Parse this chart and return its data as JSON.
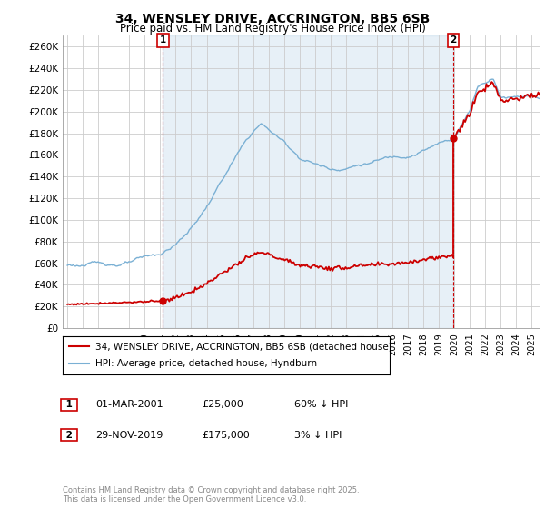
{
  "title1": "34, WENSLEY DRIVE, ACCRINGTON, BB5 6SB",
  "title2": "Price paid vs. HM Land Registry's House Price Index (HPI)",
  "legend1": "34, WENSLEY DRIVE, ACCRINGTON, BB5 6SB (detached house)",
  "legend2": "HPI: Average price, detached house, Hyndburn",
  "footnote": "Contains HM Land Registry data © Crown copyright and database right 2025.\nThis data is licensed under the Open Government Licence v3.0.",
  "annotation1_label": "1",
  "annotation1_date": "01-MAR-2001",
  "annotation1_price": "£25,000",
  "annotation1_hpi": "60% ↓ HPI",
  "annotation2_label": "2",
  "annotation2_date": "29-NOV-2019",
  "annotation2_price": "£175,000",
  "annotation2_hpi": "3% ↓ HPI",
  "red_color": "#cc0000",
  "blue_color": "#7ab0d4",
  "blue_fill": "#ddeef7",
  "background_color": "#ffffff",
  "grid_color": "#cccccc",
  "ylim": [
    0,
    270000
  ],
  "yticks": [
    0,
    20000,
    40000,
    60000,
    80000,
    100000,
    120000,
    140000,
    160000,
    180000,
    200000,
    220000,
    240000,
    260000
  ],
  "ytick_labels": [
    "£0",
    "£20K",
    "£40K",
    "£60K",
    "£80K",
    "£100K",
    "£120K",
    "£140K",
    "£160K",
    "£180K",
    "£200K",
    "£220K",
    "£240K",
    "£260K"
  ],
  "xlim_start": 1994.7,
  "xlim_end": 2025.5,
  "xticks": [
    1995,
    1996,
    1997,
    1998,
    1999,
    2000,
    2001,
    2002,
    2003,
    2004,
    2005,
    2006,
    2007,
    2008,
    2009,
    2010,
    2011,
    2012,
    2013,
    2014,
    2015,
    2016,
    2017,
    2018,
    2019,
    2020,
    2021,
    2022,
    2023,
    2024,
    2025
  ],
  "ann1_x": 2001.17,
  "ann1_y_red": 25000,
  "ann2_x": 2019.92,
  "ann2_y_red": 175000
}
